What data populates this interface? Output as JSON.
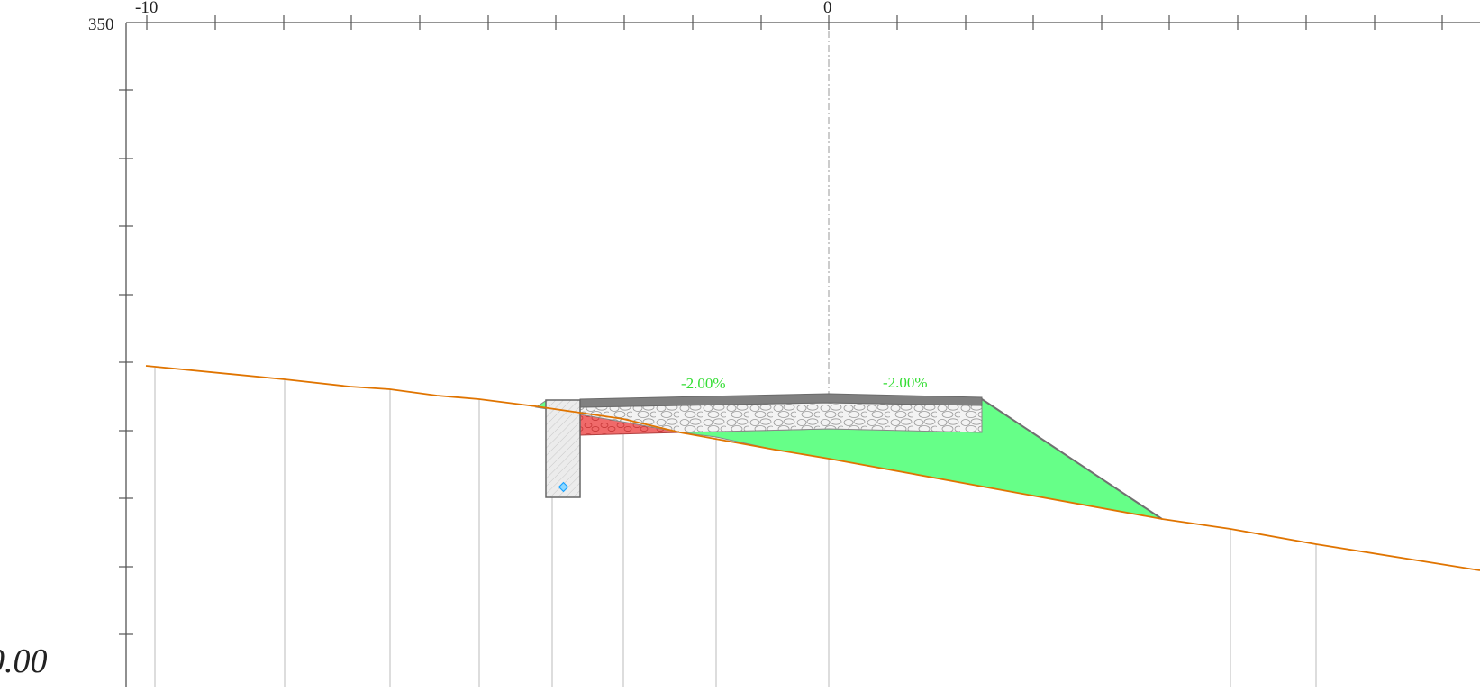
{
  "axes": {
    "top_labels": {
      "left": "-10",
      "center": "0"
    },
    "left_label": "350",
    "corner_label": "0.00"
  },
  "pavement": {
    "slope_left_label": "-2.00%",
    "slope_right_label": "-2.00%"
  },
  "colors": {
    "ground_line": "#e07400",
    "fill_embankment": "#66ff88",
    "cut_area": "#f06a6a",
    "slope_text": "#33dd33",
    "axis": "#555555",
    "gridline": "#bbbbbb",
    "asphalt": "#808080",
    "culvert_marker": "#1aa3ff"
  },
  "icons": {
    "culvert_marker": "diamond-icon"
  }
}
